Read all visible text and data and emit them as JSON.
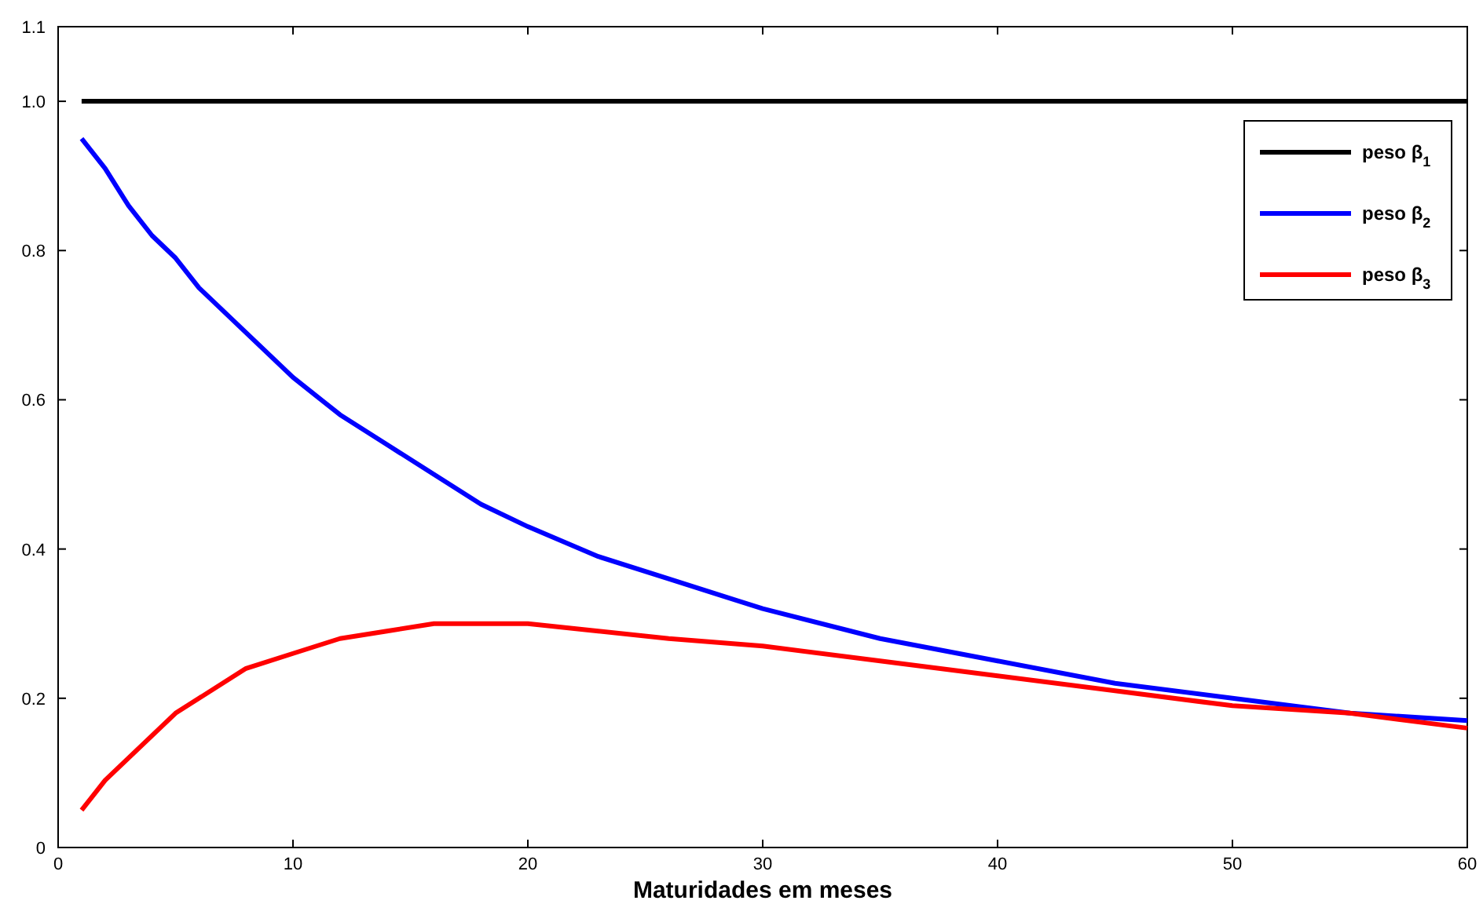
{
  "chart_data": {
    "type": "line",
    "xlabel": "Maturidades em meses",
    "x": [
      1,
      2,
      3,
      4,
      5,
      6,
      8,
      10,
      12,
      14,
      16,
      18,
      20,
      23,
      26,
      30,
      35,
      40,
      45,
      50,
      55,
      60
    ],
    "series": [
      {
        "name": "peso β$_{1}$",
        "color": "#000000",
        "values": [
          1,
          1,
          1,
          1,
          1,
          1,
          1,
          1,
          1,
          1,
          1,
          1,
          1,
          1,
          1,
          1,
          1,
          1,
          1,
          1,
          1,
          1
        ]
      },
      {
        "name": "peso β$_{2}$",
        "color": "#0000ff",
        "values": [
          0.95,
          0.91,
          0.86,
          0.82,
          0.79,
          0.75,
          0.69,
          0.63,
          0.58,
          0.54,
          0.5,
          0.46,
          0.43,
          0.39,
          0.36,
          0.32,
          0.28,
          0.25,
          0.22,
          0.2,
          0.18,
          0.17
        ]
      },
      {
        "name": "peso β$_{3}$",
        "color": "#ff0000",
        "values": [
          0.05,
          0.09,
          0.12,
          0.15,
          0.18,
          0.2,
          0.24,
          0.26,
          0.28,
          0.29,
          0.3,
          0.3,
          0.3,
          0.29,
          0.28,
          0.27,
          0.25,
          0.23,
          0.21,
          0.19,
          0.18,
          0.16
        ]
      }
    ],
    "xlim": [
      0,
      60
    ],
    "xticks": [
      0,
      10,
      20,
      30,
      40,
      50,
      60
    ],
    "ylim": [
      0,
      1.1
    ],
    "yticks": [
      0,
      0.2,
      0.4,
      0.6,
      0.8,
      {
        "value": 1,
        "label": "1.0"
      },
      1.1
    ],
    "legend": "top right",
    "marker": "none",
    "line_style": "solid"
  }
}
